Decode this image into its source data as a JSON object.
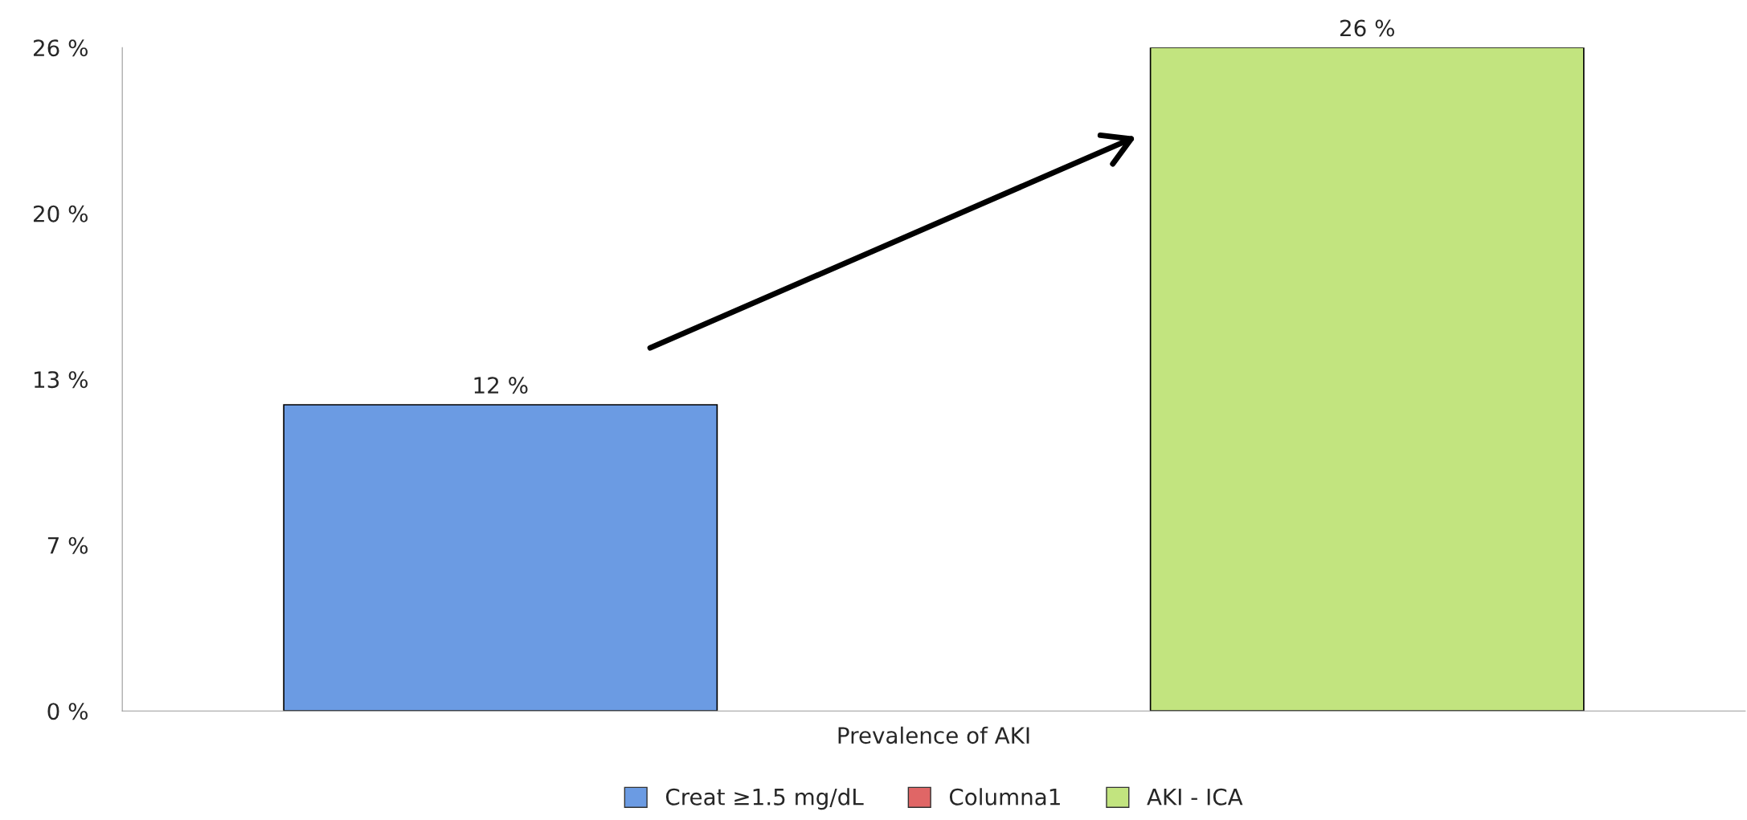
{
  "chart_data": {
    "type": "bar",
    "xlabel": null,
    "categories": [
      "Prevalence of AKI"
    ],
    "series": [
      {
        "name": "Creat ≥1.5 mg/dL",
        "color": "#6b9be3",
        "values": [
          12
        ],
        "value_labels": [
          "12 %"
        ]
      },
      {
        "name": "Columna1",
        "color": "#e06666",
        "values": [
          null
        ]
      },
      {
        "name": "AKI - ICA",
        "color": "#c2e47f",
        "values": [
          26
        ],
        "value_labels": [
          "26 %"
        ]
      }
    ],
    "ylim": [
      0,
      26
    ],
    "yticks": [
      {
        "value": 0,
        "label": "0 %"
      },
      {
        "value": 6.5,
        "label": "7 %"
      },
      {
        "value": 13,
        "label": "13 %"
      },
      {
        "value": 19.5,
        "label": "20 %"
      },
      {
        "value": 26,
        "label": "26 %"
      }
    ],
    "grid": false,
    "legend": "bottom"
  }
}
